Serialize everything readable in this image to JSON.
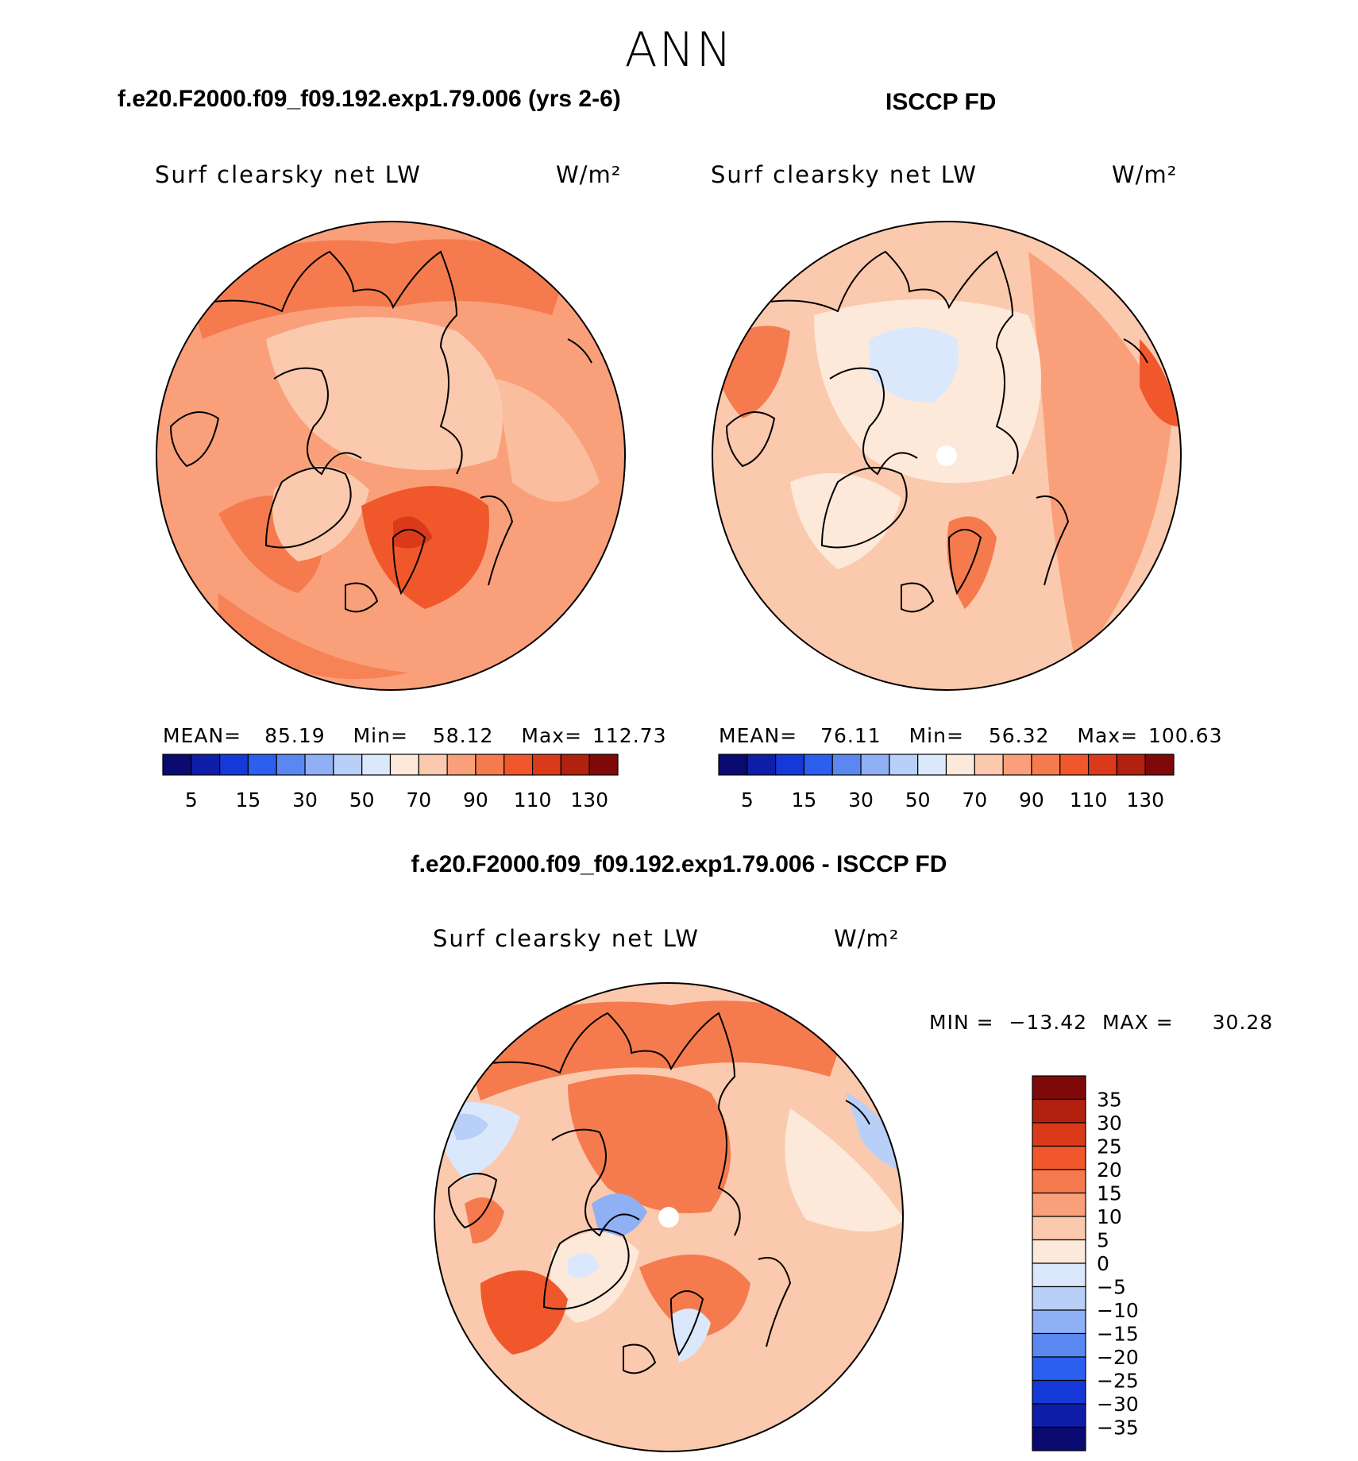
{
  "season": "ANN",
  "panels": {
    "model": {
      "header": "f.e20.F2000.f09_f09.192.exp1.79.006 (yrs 2-6)",
      "variable": "Surf clearsky net LW",
      "units": "W/m²",
      "stats": {
        "mean_label": "MEAN=",
        "mean": "85.19",
        "min_label": "Min=",
        "min": "58.12",
        "max_label": "Max=",
        "max": "112.73"
      }
    },
    "obs": {
      "header": "ISCCP FD",
      "variable": "Surf clearsky net LW",
      "units": "W/m²",
      "stats": {
        "mean_label": "MEAN=",
        "mean": "76.11",
        "min_label": "Min=",
        "min": "56.32",
        "max_label": "Max=",
        "max": "100.63"
      }
    },
    "diff": {
      "header": "f.e20.F2000.f09_f09.192.exp1.79.006 - ISCCP FD",
      "variable": "Surf clearsky net LW",
      "units": "W/m²",
      "minmax": {
        "min_label": "MIN =",
        "min": "−13.42",
        "max_label": "MAX =",
        "max": "30.28"
      }
    }
  },
  "colorbar_abs": {
    "colors": [
      "#0a0a70",
      "#0e1ea8",
      "#1539d8",
      "#2b5ff0",
      "#5b88f0",
      "#8fb0f4",
      "#b8cff8",
      "#dbe8fb",
      "#fde9da",
      "#fbc9ad",
      "#f9a07a",
      "#f57b4e",
      "#f0582c",
      "#db3a1a",
      "#b2200e",
      "#7e0908"
    ],
    "tick_labels": [
      "5",
      "15",
      "30",
      "50",
      "70",
      "90",
      "110",
      "130"
    ]
  },
  "colorbar_diff": {
    "colors": [
      "#0a0a70",
      "#0e1ea8",
      "#1539d8",
      "#2b5ff0",
      "#5b88f0",
      "#8fb0f4",
      "#b8cff8",
      "#dbe8fb",
      "#fde9da",
      "#fbc9ad",
      "#f9a07a",
      "#f57b4e",
      "#f0582c",
      "#db3a1a",
      "#b2200e",
      "#7e0908"
    ],
    "tick_labels": [
      "35",
      "30",
      "25",
      "20",
      "15",
      "10",
      "5",
      "0",
      "−5",
      "−10",
      "−15",
      "−20",
      "−25",
      "−30",
      "−35"
    ]
  },
  "chart_data": [
    {
      "type": "heatmap",
      "title": "Surf clearsky net LW",
      "subtitle": "f.e20.F2000.f09_f09.192.exp1.79.006 (yrs 2-6)",
      "units": "W/m²",
      "projection": "north polar stereographic",
      "mean": 85.19,
      "min": 58.12,
      "max": 112.73,
      "contour_levels": [
        5,
        10,
        15,
        20,
        25,
        30,
        40,
        50,
        60,
        70,
        80,
        90,
        100,
        110,
        120,
        130
      ]
    },
    {
      "type": "heatmap",
      "title": "Surf clearsky net LW",
      "subtitle": "ISCCP FD",
      "units": "W/m²",
      "projection": "north polar stereographic",
      "mean": 76.11,
      "min": 56.32,
      "max": 100.63,
      "contour_levels": [
        5,
        10,
        15,
        20,
        25,
        30,
        40,
        50,
        60,
        70,
        80,
        90,
        100,
        110,
        120,
        130
      ]
    },
    {
      "type": "heatmap",
      "title": "Surf clearsky net LW",
      "subtitle": "f.e20.F2000.f09_f09.192.exp1.79.006 - ISCCP FD",
      "units": "W/m²",
      "projection": "north polar stereographic",
      "min": -13.42,
      "max": 30.28,
      "contour_levels": [
        -35,
        -30,
        -25,
        -20,
        -15,
        -10,
        -5,
        0,
        5,
        10,
        15,
        20,
        25,
        30,
        35
      ]
    }
  ]
}
